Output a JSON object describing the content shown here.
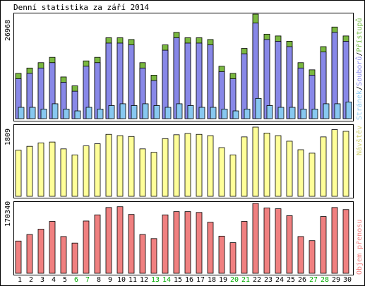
{
  "chart_data": [
    {
      "type": "bar",
      "title": "Denní statistika za září 2014",
      "ymax_label": "26968",
      "legend": [
        {
          "name": "Stránek",
          "color": "#88c8f0"
        },
        {
          "name": "/",
          "color": "#000000"
        },
        {
          "name": "Souborů",
          "color": "#8888e8"
        },
        {
          "name": "/",
          "color": "#000000"
        },
        {
          "name": "Přístupů",
          "color": "#70b840"
        }
      ],
      "categories": [
        "1",
        "2",
        "3",
        "4",
        "5",
        "6",
        "7",
        "8",
        "9",
        "10",
        "11",
        "12",
        "13",
        "14",
        "15",
        "16",
        "17",
        "18",
        "19",
        "20",
        "21",
        "22",
        "23",
        "24",
        "25",
        "26",
        "27",
        "28",
        "29",
        "30"
      ],
      "series": [
        {
          "name": "Přístupů",
          "color": "#7ab840",
          "values": [
            11680,
            13060,
            14440,
            15820,
            10760,
            8460,
            14900,
            15820,
            20880,
            20880,
            20420,
            14440,
            11220,
            19040,
            22260,
            20880,
            20880,
            20420,
            13520,
            11680,
            18120,
            26968,
            21800,
            21340,
            19960,
            14440,
            12600,
            18580,
            23640,
            21340
          ]
        },
        {
          "name": "Souborů",
          "color": "#8888e8",
          "values": [
            10300,
            11680,
            13060,
            14440,
            9380,
            7080,
            13520,
            14440,
            19500,
            19500,
            19040,
            13060,
            9840,
            17660,
            20880,
            19500,
            19500,
            19040,
            12140,
            10300,
            16740,
            24660,
            20420,
            19960,
            18580,
            13060,
            11220,
            17200,
            22260,
            19960
          ]
        },
        {
          "name": "Stránek",
          "color": "#88c8f0",
          "values": [
            2920,
            2920,
            2460,
            3840,
            2460,
            2000,
            2920,
            2460,
            3380,
            3840,
            3380,
            3840,
            3380,
            2920,
            3840,
            3380,
            2920,
            2920,
            2460,
            2000,
            2460,
            5220,
            3380,
            2920,
            2920,
            2460,
            2460,
            3840,
            3840,
            4300
          ]
        }
      ]
    },
    {
      "type": "bar",
      "ymax_label": "1809",
      "legend": [
        {
          "name": "Návštěv",
          "color": "#d0d070"
        }
      ],
      "categories": [
        "1",
        "2",
        "3",
        "4",
        "5",
        "6",
        "7",
        "8",
        "9",
        "10",
        "11",
        "12",
        "13",
        "14",
        "15",
        "16",
        "17",
        "18",
        "19",
        "20",
        "21",
        "22",
        "23",
        "24",
        "25",
        "26",
        "27",
        "28",
        "29",
        "30"
      ],
      "series": [
        {
          "name": "Návštěv",
          "color": "#ffff99",
          "values": [
            1206,
            1307,
            1397,
            1419,
            1240,
            1083,
            1318,
            1374,
            1620,
            1586,
            1564,
            1240,
            1150,
            1508,
            1609,
            1642,
            1620,
            1586,
            1273,
            1083,
            1553,
            1809,
            1654,
            1586,
            1441,
            1218,
            1128,
            1553,
            1743,
            1699
          ]
        }
      ]
    },
    {
      "type": "bar",
      "ymax_label": "170340",
      "legend": [
        {
          "name": "Objem přenosu",
          "color": "#f08080"
        }
      ],
      "categories": [
        "1",
        "2",
        "3",
        "4",
        "5",
        "6",
        "7",
        "8",
        "9",
        "10",
        "11",
        "12",
        "13",
        "14",
        "15",
        "16",
        "17",
        "18",
        "19",
        "20",
        "21",
        "22",
        "23",
        "24",
        "25",
        "26",
        "27",
        "28",
        "29",
        "30"
      ],
      "series": [
        {
          "name": "Objem přenosu",
          "color": "#f08080",
          "values": [
            78640,
            94560,
            107500,
            126410,
            89580,
            73660,
            127400,
            142340,
            160260,
            162250,
            143330,
            94560,
            84600,
            142340,
            150300,
            150300,
            148310,
            124420,
            90570,
            74650,
            126410,
            170340,
            159260,
            157270,
            140350,
            89580,
            79640,
            138360,
            160260,
            155280
          ]
        }
      ]
    }
  ],
  "weekend_days": [
    "6",
    "7",
    "13",
    "14",
    "20",
    "21",
    "27",
    "28"
  ],
  "colors": {
    "weekday_label": "#000000",
    "weekend_label": "#00aa00",
    "panel_border": "#000000"
  }
}
